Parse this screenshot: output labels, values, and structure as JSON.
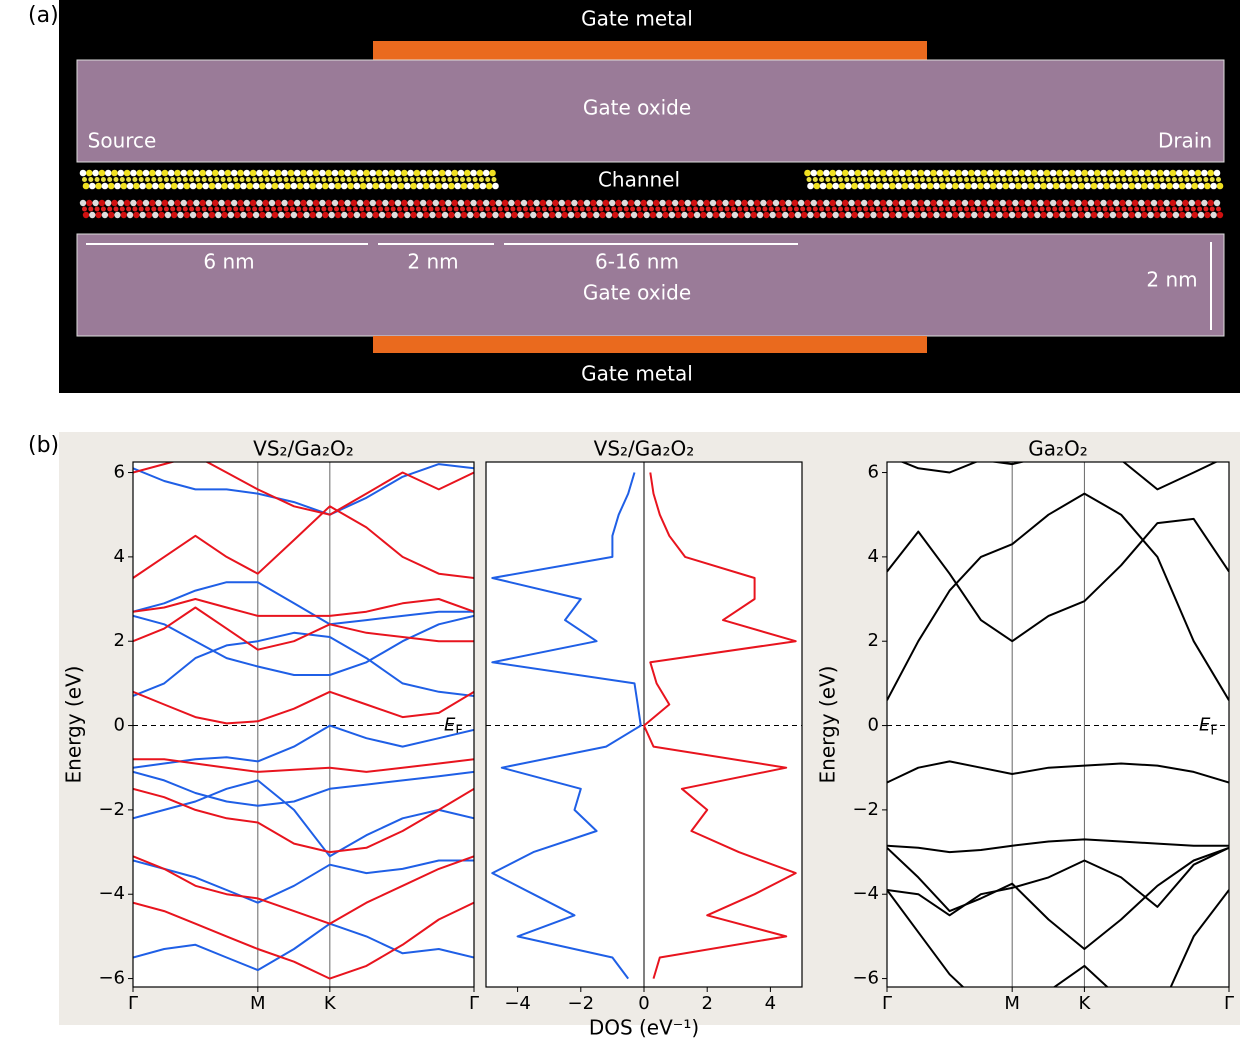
{
  "schematic": {
    "panel_label": "(a)",
    "top_gate": "Gate metal",
    "top_oxide": "Gate oxide",
    "source": "Source",
    "drain": "Drain",
    "channel": "Channel",
    "dimensions": [
      "6 nm",
      "2 nm",
      "6-16 nm",
      "2 nm"
    ],
    "bottom_oxide": "Gate oxide",
    "bottom_gate": "Gate metal"
  },
  "panel_b_label": "(b)",
  "chart_data": [
    {
      "type": "line",
      "title": "VS₂/Ga₂O₂",
      "ylabel": "Energy (eV)",
      "fermi_label": "E",
      "fermi_sub": "F",
      "x": [
        0,
        0.25,
        0.5,
        0.75,
        1,
        1.29,
        1.577,
        1.87,
        2.16,
        2.45,
        2.732
      ],
      "xlim": [
        0,
        2.732
      ],
      "ylim": [
        -6.2,
        6.25
      ],
      "xticks": [
        {
          "value": 0,
          "label": "Γ"
        },
        {
          "value": 1,
          "label": "M"
        },
        {
          "value": 1.577,
          "label": "K"
        },
        {
          "value": 2.732,
          "label": "Γ"
        }
      ],
      "yticks": [
        {
          "value": -6,
          "label": "−6"
        },
        {
          "value": -4,
          "label": "−4"
        },
        {
          "value": -2,
          "label": "−2"
        },
        0,
        2,
        4,
        6
      ],
      "series": [
        {
          "color": "#1f5fe6",
          "values": [
            -1.0,
            -0.9,
            -0.8,
            -0.75,
            -0.85,
            -0.5,
            0.0,
            -0.3,
            -0.5,
            -0.3,
            -0.1
          ]
        },
        {
          "color": "#1f5fe6",
          "values": [
            0.7,
            1.0,
            1.6,
            1.9,
            2.0,
            2.2,
            2.1,
            1.6,
            1.0,
            0.8,
            0.7
          ]
        },
        {
          "color": "#1f5fe6",
          "values": [
            2.6,
            2.4,
            2.0,
            1.6,
            1.4,
            1.2,
            1.2,
            1.5,
            2.0,
            2.4,
            2.6
          ]
        },
        {
          "color": "#1f5fe6",
          "values": [
            2.7,
            2.9,
            3.2,
            3.4,
            3.4,
            2.9,
            2.4,
            2.5,
            2.6,
            2.7,
            2.7
          ]
        },
        {
          "color": "#1f5fe6",
          "values": [
            -1.1,
            -1.3,
            -1.6,
            -1.8,
            -1.9,
            -1.8,
            -1.5,
            -1.4,
            -1.3,
            -1.2,
            -1.1
          ]
        },
        {
          "color": "#1f5fe6",
          "values": [
            -2.2,
            -2.0,
            -1.8,
            -1.5,
            -1.3,
            -2.0,
            -3.1,
            -2.6,
            -2.2,
            -2.0,
            -2.2
          ]
        },
        {
          "color": "#1f5fe6",
          "values": [
            -3.2,
            -3.4,
            -3.6,
            -3.9,
            -4.2,
            -3.8,
            -3.3,
            -3.5,
            -3.4,
            -3.2,
            -3.2
          ]
        },
        {
          "color": "#1f5fe6",
          "values": [
            -5.5,
            -5.3,
            -5.2,
            -5.5,
            -5.8,
            -5.3,
            -4.7,
            -5.0,
            -5.4,
            -5.3,
            -5.5
          ]
        },
        {
          "color": "#1f5fe6",
          "values": [
            6.1,
            5.8,
            5.6,
            5.6,
            5.5,
            5.3,
            5.0,
            5.4,
            5.9,
            6.2,
            6.1
          ]
        },
        {
          "color": "#e8141e",
          "values": [
            0.8,
            0.5,
            0.2,
            0.05,
            0.1,
            0.4,
            0.8,
            0.5,
            0.2,
            0.3,
            0.8
          ]
        },
        {
          "color": "#e8141e",
          "values": [
            3.5,
            4.0,
            4.5,
            4.0,
            3.6,
            4.4,
            5.2,
            4.7,
            4.0,
            3.6,
            3.5
          ]
        },
        {
          "color": "#e8141e",
          "values": [
            2.7,
            2.8,
            3.0,
            2.8,
            2.6,
            2.6,
            2.6,
            2.7,
            2.9,
            3.0,
            2.7
          ]
        },
        {
          "color": "#e8141e",
          "values": [
            2.0,
            2.3,
            2.8,
            2.3,
            1.8,
            2.0,
            2.4,
            2.2,
            2.1,
            2.0,
            2.0
          ]
        },
        {
          "color": "#e8141e",
          "values": [
            -0.8,
            -0.8,
            -0.9,
            -1.0,
            -1.1,
            -1.05,
            -1.0,
            -1.1,
            -1.0,
            -0.9,
            -0.8
          ]
        },
        {
          "color": "#e8141e",
          "values": [
            -1.5,
            -1.7,
            -2.0,
            -2.2,
            -2.3,
            -2.8,
            -3.0,
            -2.9,
            -2.5,
            -2.0,
            -1.5
          ]
        },
        {
          "color": "#e8141e",
          "values": [
            -3.1,
            -3.4,
            -3.8,
            -4.0,
            -4.1,
            -4.4,
            -4.7,
            -4.2,
            -3.8,
            -3.4,
            -3.1
          ]
        },
        {
          "color": "#e8141e",
          "values": [
            -4.2,
            -4.4,
            -4.7,
            -5.0,
            -5.3,
            -5.6,
            -6.0,
            -5.7,
            -5.2,
            -4.6,
            -4.2
          ]
        },
        {
          "color": "#e8141e",
          "values": [
            6.0,
            6.2,
            6.4,
            6.0,
            5.6,
            5.2,
            5.0,
            5.5,
            6.0,
            5.6,
            6.0
          ]
        }
      ]
    },
    {
      "type": "line",
      "orientation": "horizontal",
      "title": "VS₂/Ga₂O₂",
      "xlabel": "DOS (eV⁻¹)",
      "y": [
        -6,
        -5.5,
        -5,
        -4.5,
        -4,
        -3.5,
        -3,
        -2.5,
        -2,
        -1.5,
        -1,
        -0.5,
        0,
        0.5,
        1,
        1.5,
        2,
        2.5,
        3,
        3.5,
        4,
        4.5,
        5,
        5.5,
        6
      ],
      "xlim": [
        -5,
        5
      ],
      "ylim": [
        -6.2,
        6.25
      ],
      "xticks": [
        {
          "value": -4,
          "label": "−4"
        },
        {
          "value": -2,
          "label": "−2"
        },
        0,
        2,
        4
      ],
      "series": [
        {
          "color": "#1f5fe6",
          "values": [
            -0.5,
            -1.0,
            -4.0,
            -2.2,
            -3.5,
            -4.8,
            -3.5,
            -1.5,
            -2.2,
            -2.0,
            -4.5,
            -1.2,
            -0.1,
            -0.2,
            -0.3,
            -4.8,
            -1.5,
            -2.5,
            -2.0,
            -4.8,
            -1.0,
            -1.0,
            -0.8,
            -0.5,
            -0.3
          ]
        },
        {
          "color": "#e8141e",
          "values": [
            0.3,
            0.5,
            4.5,
            2.0,
            3.5,
            4.8,
            3.0,
            1.5,
            2.0,
            1.2,
            4.5,
            0.3,
            0.0,
            0.8,
            0.4,
            0.2,
            4.8,
            2.5,
            3.5,
            3.5,
            1.3,
            0.8,
            0.5,
            0.3,
            0.2
          ]
        }
      ]
    },
    {
      "type": "line",
      "title": "Ga₂O₂",
      "ylabel": "Energy (eV)",
      "fermi_label": "E",
      "fermi_sub": "F",
      "x": [
        0,
        0.25,
        0.5,
        0.75,
        1,
        1.29,
        1.577,
        1.87,
        2.16,
        2.45,
        2.732
      ],
      "xlim": [
        0,
        2.732
      ],
      "ylim": [
        -6.2,
        6.25
      ],
      "xticks": [
        {
          "value": 0,
          "label": "Γ"
        },
        {
          "value": 1,
          "label": "M"
        },
        {
          "value": 1.577,
          "label": "K"
        },
        {
          "value": 2.732,
          "label": "Γ"
        }
      ],
      "yticks": [
        {
          "value": -6,
          "label": "−6"
        },
        {
          "value": -4,
          "label": "−4"
        },
        {
          "value": -2,
          "label": "−2"
        },
        0,
        2,
        4,
        6
      ],
      "series": [
        {
          "color": "#000000",
          "values": [
            0.6,
            2.0,
            3.2,
            4.0,
            4.3,
            5.0,
            5.5,
            5.0,
            4.0,
            2.0,
            0.6
          ]
        },
        {
          "color": "#000000",
          "values": [
            3.65,
            4.6,
            3.6,
            2.5,
            2.0,
            2.6,
            2.95,
            3.8,
            4.8,
            4.9,
            3.65
          ]
        },
        {
          "color": "#000000",
          "values": [
            -1.35,
            -1.0,
            -0.85,
            -1.0,
            -1.15,
            -1.0,
            -0.95,
            -0.9,
            -0.95,
            -1.1,
            -1.35
          ]
        },
        {
          "color": "#000000",
          "values": [
            -2.85,
            -2.9,
            -3.0,
            -2.95,
            -2.85,
            -2.75,
            -2.7,
            -2.75,
            -2.8,
            -2.85,
            -2.85
          ]
        },
        {
          "color": "#000000",
          "values": [
            -2.9,
            -3.6,
            -4.4,
            -4.1,
            -3.75,
            -4.6,
            -5.3,
            -4.6,
            -3.8,
            -3.2,
            -2.9
          ]
        },
        {
          "color": "#000000",
          "values": [
            -3.9,
            -4.0,
            -4.5,
            -4.0,
            -3.85,
            -3.6,
            -3.2,
            -3.6,
            -4.3,
            -3.3,
            -2.9
          ]
        },
        {
          "color": "#000000",
          "values": [
            -3.9,
            -4.9,
            -5.9,
            -6.6,
            -7.0,
            -6.3,
            -5.7,
            -6.5,
            -6.9,
            -5.0,
            -3.9
          ]
        },
        {
          "color": "#000000",
          "values": [
            6.4,
            6.1,
            6.0,
            6.3,
            6.2,
            6.4,
            6.8,
            6.3,
            5.6,
            6.0,
            6.4
          ]
        }
      ]
    }
  ]
}
